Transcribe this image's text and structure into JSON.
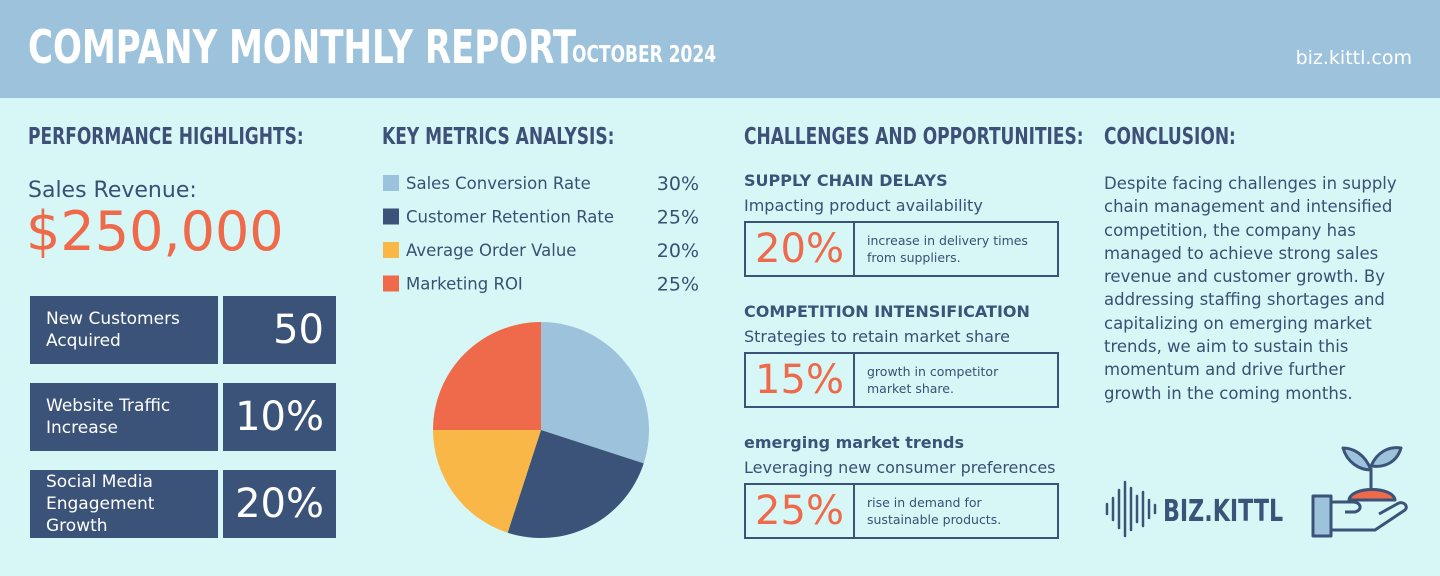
{
  "header": {
    "title": "COMPANY MONTHLY REPORT",
    "date": "OCTOBER 2024",
    "url": "biz.kittl.com"
  },
  "highlights": {
    "heading": "PERFORMANCE HIGHLIGHTS:",
    "revenue_label": "Sales Revenue:",
    "revenue": "$250,000",
    "stats": [
      {
        "label": "New Customers Acquired",
        "value": "50"
      },
      {
        "label": "Website Traffic Increase",
        "value": "10%"
      },
      {
        "label": "Social Media Engagement Growth",
        "value": "20%"
      }
    ]
  },
  "chart_data": {
    "type": "pie",
    "title": "KEY METRICS ANALYSIS:",
    "categories": [
      "Sales Conversion Rate",
      "Customer Retention Rate",
      "Average Order Value",
      "Marketing ROI"
    ],
    "values": [
      30,
      25,
      20,
      25
    ],
    "value_labels": [
      "30%",
      "25%",
      "20%",
      "25%"
    ],
    "colors": [
      "#9dc3dc",
      "#3b5378",
      "#f9b748",
      "#ef6a4b"
    ]
  },
  "challenges": {
    "heading": "CHALLENGES AND OPPORTUNITIES:",
    "items": [
      {
        "title": "SUPPLY CHAIN DELAYS",
        "subtitle": "Impacting product availability",
        "figure": "20%",
        "note": "increase in delivery times from suppliers."
      },
      {
        "title": "COMPETITION INTENSIFICATION",
        "subtitle": "Strategies to retain market share",
        "figure": "15%",
        "note": "growth in competitor market share."
      },
      {
        "title": "emerging market trends",
        "subtitle": "Leveraging new consumer preferences",
        "figure": "25%",
        "note": "rise in demand for sustainable products."
      }
    ]
  },
  "conclusion": {
    "heading": "CONCLUSION:",
    "text": "Despite facing challenges in supply chain management and intensified competition, the company has managed to achieve strong sales revenue and customer growth. By addressing staffing shortages and capitalizing on emerging market trends, we aim to sustain this momentum and drive further growth in the coming months."
  },
  "brand": "BIZ.KITTL"
}
